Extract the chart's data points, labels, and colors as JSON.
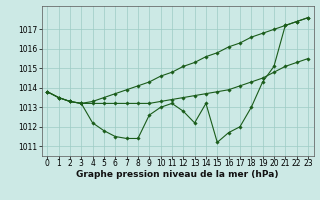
{
  "xlabel": "Graphe pression niveau de la mer (hPa)",
  "x": [
    0,
    1,
    2,
    3,
    4,
    5,
    6,
    7,
    8,
    9,
    10,
    11,
    12,
    13,
    14,
    15,
    16,
    17,
    18,
    19,
    20,
    21,
    22,
    23
  ],
  "line_main": [
    1013.8,
    1013.5,
    1013.3,
    1013.2,
    1012.2,
    1011.8,
    1011.5,
    1011.4,
    1011.4,
    1012.6,
    1013.0,
    1013.2,
    1012.8,
    1012.2,
    1013.2,
    1011.2,
    1011.7,
    1012.0,
    1013.0,
    1014.3,
    1015.1,
    1017.2,
    1017.4,
    1017.6
  ],
  "line_mid": [
    1013.8,
    1013.5,
    1013.3,
    1013.2,
    1013.2,
    1013.2,
    1013.2,
    1013.2,
    1013.2,
    1013.2,
    1013.3,
    1013.4,
    1013.5,
    1013.6,
    1013.7,
    1013.8,
    1013.9,
    1014.1,
    1014.3,
    1014.5,
    1014.8,
    1015.1,
    1015.3,
    1015.5
  ],
  "line_top": [
    1013.8,
    1013.5,
    1013.3,
    1013.2,
    1013.3,
    1013.5,
    1013.7,
    1013.9,
    1014.1,
    1014.3,
    1014.6,
    1014.8,
    1015.1,
    1015.3,
    1015.6,
    1015.8,
    1016.1,
    1016.3,
    1016.6,
    1016.8,
    1017.0,
    1017.2,
    1017.4,
    1017.6
  ],
  "background_color": "#cce9e5",
  "grid_color": "#9dccc4",
  "line_color": "#1a5c1a",
  "ylim": [
    1010.5,
    1018.2
  ],
  "yticks": [
    1011,
    1012,
    1013,
    1014,
    1015,
    1016,
    1017
  ],
  "marker": "D",
  "markersize": 1.8,
  "linewidth": 0.8,
  "xlabel_fontsize": 6.5,
  "tick_fontsize": 5.5
}
